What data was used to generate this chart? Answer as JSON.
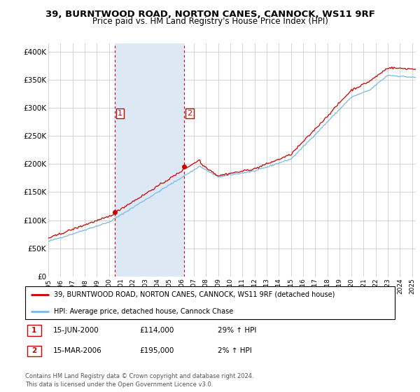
{
  "title": "39, BURNTWOOD ROAD, NORTON CANES, CANNOCK, WS11 9RF",
  "subtitle": "Price paid vs. HM Land Registry's House Price Index (HPI)",
  "title_fontsize": 9.5,
  "subtitle_fontsize": 8.5,
  "ylabel_ticks": [
    "£0",
    "£50K",
    "£100K",
    "£150K",
    "£200K",
    "£250K",
    "£300K",
    "£350K",
    "£400K"
  ],
  "ytick_values": [
    0,
    50000,
    100000,
    150000,
    200000,
    250000,
    300000,
    350000,
    400000
  ],
  "ylim": [
    0,
    415000
  ],
  "xlim_start": 1995.0,
  "xlim_end": 2025.3,
  "hpi_color": "#7ab8e8",
  "price_color": "#cc0000",
  "shade_color": "#dce9f5",
  "vline_color": "#cc0000",
  "background_color": "#ffffff",
  "grid_color": "#cccccc",
  "sale1_date_year": 2000.46,
  "sale1_price": 114000,
  "sale1_label": "1",
  "sale2_date_year": 2006.21,
  "sale2_price": 195000,
  "sale2_label": "2",
  "legend1_text": "39, BURNTWOOD ROAD, NORTON CANES, CANNOCK, WS11 9RF (detached house)",
  "legend2_text": "HPI: Average price, detached house, Cannock Chase",
  "table_row1": [
    "1",
    "15-JUN-2000",
    "£114,000",
    "29% ↑ HPI"
  ],
  "table_row2": [
    "2",
    "15-MAR-2006",
    "£195,000",
    "2% ↑ HPI"
  ],
  "footer_text": "Contains HM Land Registry data © Crown copyright and database right 2024.\nThis data is licensed under the Open Government Licence v3.0.",
  "xtick_years": [
    1995,
    1996,
    1997,
    1998,
    1999,
    2000,
    2001,
    2002,
    2003,
    2004,
    2005,
    2006,
    2007,
    2008,
    2009,
    2010,
    2011,
    2012,
    2013,
    2014,
    2015,
    2016,
    2017,
    2018,
    2019,
    2020,
    2021,
    2022,
    2023,
    2024,
    2025
  ]
}
